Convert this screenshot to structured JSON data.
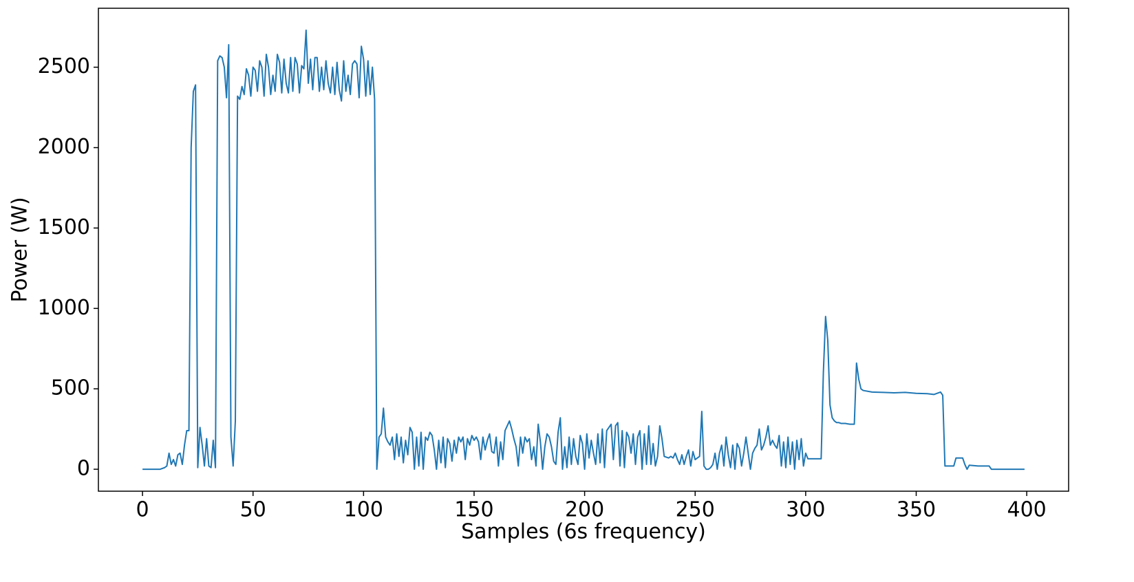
{
  "chart_data": {
    "type": "line",
    "xlabel": "Samples (6s frequency)",
    "ylabel": "Power (W)",
    "xlim": [
      -19.95,
      418.95
    ],
    "ylim": [
      -136.5,
      2866.5
    ],
    "xticks": [
      0,
      50,
      100,
      150,
      200,
      250,
      300,
      350,
      400
    ],
    "yticks": [
      0,
      500,
      1000,
      1500,
      2000,
      2500
    ],
    "grid": false,
    "x": [
      0,
      8,
      10,
      11,
      12,
      13,
      14,
      15,
      16,
      17,
      18,
      19,
      20,
      21,
      22,
      23,
      24,
      25,
      26,
      27,
      28,
      29,
      30,
      31,
      32,
      33,
      34,
      35,
      36,
      37,
      38,
      39,
      40,
      41,
      42,
      43,
      44,
      45,
      46,
      47,
      48,
      49,
      50,
      51,
      52,
      53,
      54,
      55,
      56,
      57,
      58,
      59,
      60,
      61,
      62,
      63,
      64,
      65,
      66,
      67,
      68,
      69,
      70,
      71,
      72,
      73,
      74,
      75,
      76,
      77,
      78,
      79,
      80,
      81,
      82,
      83,
      84,
      85,
      86,
      87,
      88,
      89,
      90,
      91,
      92,
      93,
      94,
      95,
      96,
      97,
      98,
      99,
      100,
      101,
      102,
      103,
      104,
      105,
      106,
      107,
      108,
      109,
      110,
      111,
      112,
      113,
      114,
      115,
      116,
      117,
      118,
      119,
      120,
      121,
      122,
      123,
      124,
      125,
      126,
      127,
      128,
      129,
      130,
      131,
      132,
      133,
      134,
      135,
      136,
      137,
      138,
      139,
      140,
      141,
      142,
      143,
      144,
      145,
      146,
      147,
      148,
      149,
      150,
      151,
      152,
      153,
      154,
      155,
      156,
      157,
      158,
      159,
      160,
      161,
      162,
      163,
      164,
      165,
      166,
      167,
      168,
      169,
      170,
      171,
      172,
      173,
      174,
      175,
      176,
      177,
      178,
      179,
      180,
      181,
      182,
      183,
      184,
      185,
      186,
      187,
      188,
      189,
      190,
      191,
      192,
      193,
      194,
      195,
      196,
      197,
      198,
      199,
      200,
      201,
      202,
      203,
      204,
      205,
      206,
      207,
      208,
      209,
      210,
      211,
      212,
      213,
      214,
      215,
      216,
      217,
      218,
      219,
      220,
      221,
      222,
      223,
      224,
      225,
      226,
      227,
      228,
      229,
      230,
      231,
      232,
      233,
      234,
      235,
      236,
      237,
      238,
      239,
      240,
      241,
      242,
      243,
      244,
      245,
      246,
      247,
      248,
      249,
      250,
      251,
      252,
      253,
      254,
      255,
      256,
      257,
      258,
      259,
      260,
      261,
      262,
      263,
      264,
      265,
      266,
      267,
      268,
      269,
      270,
      271,
      272,
      273,
      274,
      275,
      276,
      277,
      278,
      279,
      280,
      281,
      282,
      283,
      284,
      285,
      286,
      287,
      288,
      289,
      290,
      291,
      292,
      293,
      294,
      295,
      296,
      297,
      298,
      299,
      300,
      301,
      302,
      303,
      304,
      305,
      306,
      307,
      308,
      309,
      310,
      311,
      312,
      313,
      314,
      315,
      316,
      317,
      318,
      319,
      320,
      321,
      322,
      323,
      324,
      325,
      326,
      330,
      335,
      340,
      345,
      350,
      355,
      358,
      361,
      362,
      363,
      367,
      368,
      371,
      372,
      373,
      374,
      378,
      383,
      384,
      399
    ],
    "series": [
      {
        "name": "Power",
        "color": "#1f77b4",
        "values": [
          0,
          0,
          10,
          20,
          100,
          30,
          60,
          20,
          90,
          100,
          30,
          150,
          240,
          240,
          2000,
          2350,
          2390,
          10,
          260,
          150,
          20,
          190,
          20,
          10,
          180,
          10,
          2540,
          2570,
          2560,
          2500,
          2310,
          2640,
          200,
          20,
          300,
          2320,
          2300,
          2380,
          2330,
          2490,
          2450,
          2320,
          2500,
          2480,
          2350,
          2540,
          2500,
          2320,
          2580,
          2500,
          2330,
          2450,
          2350,
          2580,
          2530,
          2340,
          2550,
          2400,
          2340,
          2560,
          2350,
          2560,
          2520,
          2340,
          2510,
          2490,
          2730,
          2400,
          2550,
          2360,
          2560,
          2560,
          2350,
          2500,
          2360,
          2540,
          2400,
          2340,
          2500,
          2330,
          2530,
          2360,
          2290,
          2540,
          2350,
          2450,
          2330,
          2520,
          2540,
          2520,
          2310,
          2630,
          2550,
          2320,
          2540,
          2330,
          2500,
          2300,
          0,
          200,
          220,
          380,
          200,
          170,
          150,
          200,
          60,
          220,
          80,
          200,
          40,
          180,
          90,
          260,
          230,
          0,
          200,
          20,
          230,
          0,
          200,
          180,
          230,
          210,
          120,
          0,
          180,
          40,
          200,
          10,
          190,
          160,
          50,
          180,
          100,
          200,
          170,
          200,
          60,
          190,
          150,
          210,
          180,
          200,
          170,
          60,
          200,
          120,
          180,
          220,
          110,
          100,
          200,
          20,
          170,
          60,
          240,
          270,
          300,
          250,
          190,
          140,
          20,
          200,
          100,
          200,
          170,
          190,
          60,
          140,
          20,
          280,
          170,
          0,
          140,
          220,
          200,
          140,
          50,
          30,
          230,
          320,
          0,
          140,
          10,
          200,
          30,
          190,
          80,
          30,
          210,
          160,
          0,
          220,
          70,
          180,
          100,
          30,
          220,
          40,
          250,
          10,
          240,
          260,
          280,
          60,
          270,
          290,
          20,
          240,
          10,
          230,
          200,
          100,
          220,
          30,
          200,
          240,
          0,
          220,
          30,
          270,
          30,
          160,
          20,
          80,
          270,
          190,
          80,
          75,
          70,
          80,
          70,
          100,
          60,
          30,
          90,
          30,
          80,
          120,
          20,
          110,
          60,
          70,
          80,
          360,
          20,
          0,
          0,
          10,
          30,
          100,
          0,
          100,
          150,
          20,
          200,
          90,
          10,
          150,
          0,
          160,
          130,
          20,
          100,
          200,
          100,
          0,
          100,
          130,
          150,
          250,
          120,
          150,
          200,
          270,
          150,
          180,
          150,
          130,
          210,
          20,
          170,
          10,
          200,
          30,
          170,
          0,
          180,
          60,
          190,
          20,
          100,
          65,
          65,
          65,
          65,
          65,
          65,
          65,
          600,
          950,
          800,
          400,
          320,
          300,
          290,
          290,
          285,
          285,
          285,
          282,
          280,
          280,
          280,
          660,
          560,
          500,
          490,
          480,
          478,
          475,
          478,
          472,
          470,
          465,
          480,
          460,
          20,
          20,
          70,
          70,
          30,
          0,
          25,
          20,
          20,
          0,
          0
        ]
      }
    ]
  }
}
